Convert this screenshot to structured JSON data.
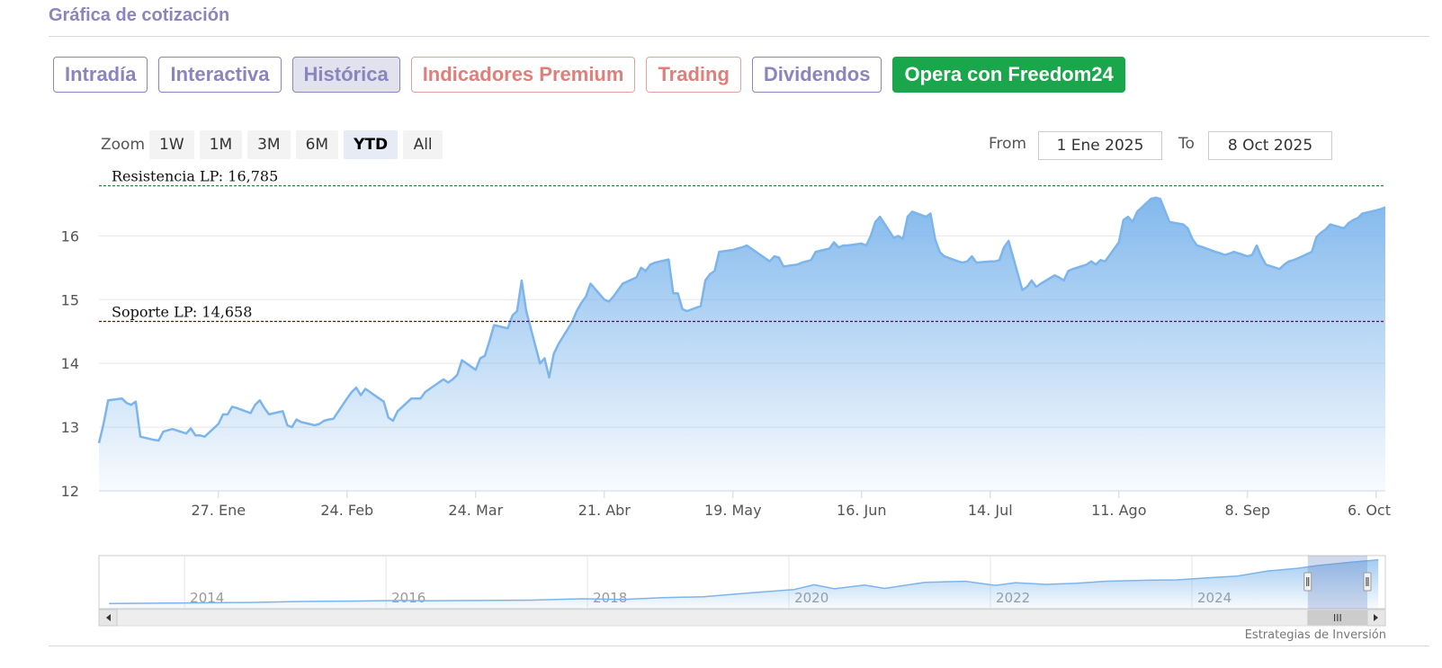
{
  "section_title": "Gráfica de cotización",
  "tabs": [
    {
      "label": "Intradía",
      "style": "normal"
    },
    {
      "label": "Interactiva",
      "style": "normal"
    },
    {
      "label": "Histórica",
      "style": "active"
    },
    {
      "label": "Indicadores Premium",
      "style": "premium"
    },
    {
      "label": "Trading",
      "style": "premium"
    },
    {
      "label": "Dividendos",
      "style": "normal"
    },
    {
      "label": "Opera con Freedom24",
      "style": "cta"
    }
  ],
  "zoom": {
    "label": "Zoom",
    "buttons": [
      "1W",
      "1M",
      "3M",
      "6M",
      "YTD",
      "All"
    ],
    "selected": "YTD"
  },
  "range": {
    "from_label": "From",
    "from_value": "1 Ene 2025",
    "to_label": "To",
    "to_value": "8 Oct 2025"
  },
  "credits": "Estrategias de Inversión",
  "colors": {
    "series_line": "#7cb5ec",
    "resistance_line": "#1a7a1a",
    "support_line": "#8b0000",
    "accent_green": "#1aa64a",
    "tab_purple": "#8a85bd",
    "tab_premium": "#e07f7a"
  },
  "chart_data": {
    "type": "area",
    "title": "",
    "xlabel": "",
    "ylabel": "",
    "ylim": [
      12,
      16.95
    ],
    "xlim": [
      "2025-01-01",
      "2025-10-08"
    ],
    "y_ticks": [
      "12",
      "13",
      "14",
      "15",
      "16"
    ],
    "x_ticks": [
      {
        "date": "2025-01-27",
        "label": "27. Ene"
      },
      {
        "date": "2025-02-24",
        "label": "24. Feb"
      },
      {
        "date": "2025-03-24",
        "label": "24. Mar"
      },
      {
        "date": "2025-04-21",
        "label": "21. Abr"
      },
      {
        "date": "2025-05-19",
        "label": "19. May"
      },
      {
        "date": "2025-06-16",
        "label": "16. Jun"
      },
      {
        "date": "2025-07-14",
        "label": "14. Jul"
      },
      {
        "date": "2025-08-11",
        "label": "11. Ago"
      },
      {
        "date": "2025-09-08",
        "label": "8. Sep"
      },
      {
        "date": "2025-10-06",
        "label": "6. Oct"
      }
    ],
    "grid": true,
    "series": [
      {
        "values": [
          [
            "2025-01-01",
            12.75
          ],
          [
            "2025-01-02",
            13.05
          ],
          [
            "2025-01-03",
            13.42
          ],
          [
            "2025-01-06",
            13.45
          ],
          [
            "2025-01-07",
            13.38
          ],
          [
            "2025-01-08",
            13.35
          ],
          [
            "2025-01-09",
            13.4
          ],
          [
            "2025-01-10",
            12.85
          ],
          [
            "2025-01-13",
            12.8
          ],
          [
            "2025-01-14",
            12.79
          ],
          [
            "2025-01-15",
            12.93
          ],
          [
            "2025-01-16",
            12.95
          ],
          [
            "2025-01-17",
            12.97
          ],
          [
            "2025-01-20",
            12.9
          ],
          [
            "2025-01-21",
            12.98
          ],
          [
            "2025-01-22",
            12.87
          ],
          [
            "2025-01-23",
            12.87
          ],
          [
            "2025-01-24",
            12.85
          ],
          [
            "2025-01-27",
            13.05
          ],
          [
            "2025-01-28",
            13.2
          ],
          [
            "2025-01-29",
            13.2
          ],
          [
            "2025-01-30",
            13.32
          ],
          [
            "2025-01-31",
            13.3
          ],
          [
            "2025-02-03",
            13.22
          ],
          [
            "2025-02-04",
            13.35
          ],
          [
            "2025-02-05",
            13.42
          ],
          [
            "2025-02-06",
            13.3
          ],
          [
            "2025-02-07",
            13.2
          ],
          [
            "2025-02-10",
            13.25
          ],
          [
            "2025-02-11",
            13.03
          ],
          [
            "2025-02-12",
            13.0
          ],
          [
            "2025-02-13",
            13.12
          ],
          [
            "2025-02-14",
            13.08
          ],
          [
            "2025-02-17",
            13.03
          ],
          [
            "2025-02-18",
            13.05
          ],
          [
            "2025-02-19",
            13.1
          ],
          [
            "2025-02-20",
            13.12
          ],
          [
            "2025-02-21",
            13.13
          ],
          [
            "2025-02-24",
            13.45
          ],
          [
            "2025-02-25",
            13.55
          ],
          [
            "2025-02-26",
            13.62
          ],
          [
            "2025-02-27",
            13.5
          ],
          [
            "2025-02-28",
            13.6
          ],
          [
            "2025-03-03",
            13.45
          ],
          [
            "2025-03-04",
            13.4
          ],
          [
            "2025-03-05",
            13.15
          ],
          [
            "2025-03-06",
            13.1
          ],
          [
            "2025-03-07",
            13.25
          ],
          [
            "2025-03-10",
            13.45
          ],
          [
            "2025-03-11",
            13.45
          ],
          [
            "2025-03-12",
            13.45
          ],
          [
            "2025-03-13",
            13.55
          ],
          [
            "2025-03-14",
            13.6
          ],
          [
            "2025-03-17",
            13.75
          ],
          [
            "2025-03-18",
            13.7
          ],
          [
            "2025-03-19",
            13.75
          ],
          [
            "2025-03-20",
            13.82
          ],
          [
            "2025-03-21",
            14.05
          ],
          [
            "2025-03-24",
            13.9
          ],
          [
            "2025-03-25",
            14.08
          ],
          [
            "2025-03-26",
            14.12
          ],
          [
            "2025-03-27",
            14.35
          ],
          [
            "2025-03-28",
            14.6
          ],
          [
            "2025-03-31",
            14.55
          ],
          [
            "2025-04-01",
            14.75
          ],
          [
            "2025-04-02",
            14.82
          ],
          [
            "2025-04-03",
            15.3
          ],
          [
            "2025-04-04",
            14.82
          ],
          [
            "2025-04-07",
            14.0
          ],
          [
            "2025-04-08",
            14.08
          ],
          [
            "2025-04-09",
            13.78
          ],
          [
            "2025-04-10",
            14.15
          ],
          [
            "2025-04-11",
            14.3
          ],
          [
            "2025-04-14",
            14.65
          ],
          [
            "2025-04-15",
            14.82
          ],
          [
            "2025-04-16",
            14.95
          ],
          [
            "2025-04-17",
            15.05
          ],
          [
            "2025-04-18",
            15.25
          ],
          [
            "2025-04-21",
            15.0
          ],
          [
            "2025-04-22",
            14.97
          ],
          [
            "2025-04-23",
            15.05
          ],
          [
            "2025-04-24",
            15.15
          ],
          [
            "2025-04-25",
            15.25
          ],
          [
            "2025-04-28",
            15.35
          ],
          [
            "2025-04-29",
            15.5
          ],
          [
            "2025-04-30",
            15.45
          ],
          [
            "2025-05-01",
            15.55
          ],
          [
            "2025-05-02",
            15.58
          ],
          [
            "2025-05-05",
            15.63
          ],
          [
            "2025-05-06",
            15.1
          ],
          [
            "2025-05-07",
            15.1
          ],
          [
            "2025-05-08",
            14.85
          ],
          [
            "2025-05-09",
            14.82
          ],
          [
            "2025-05-12",
            14.9
          ],
          [
            "2025-05-13",
            15.3
          ],
          [
            "2025-05-14",
            15.4
          ],
          [
            "2025-05-15",
            15.45
          ],
          [
            "2025-05-16",
            15.75
          ],
          [
            "2025-05-19",
            15.78
          ],
          [
            "2025-05-20",
            15.8
          ],
          [
            "2025-05-21",
            15.82
          ],
          [
            "2025-05-22",
            15.85
          ],
          [
            "2025-05-23",
            15.8
          ],
          [
            "2025-05-26",
            15.65
          ],
          [
            "2025-05-27",
            15.6
          ],
          [
            "2025-05-28",
            15.68
          ],
          [
            "2025-05-29",
            15.66
          ],
          [
            "2025-05-30",
            15.52
          ],
          [
            "2025-06-02",
            15.55
          ],
          [
            "2025-06-03",
            15.58
          ],
          [
            "2025-06-04",
            15.6
          ],
          [
            "2025-06-05",
            15.62
          ],
          [
            "2025-06-06",
            15.75
          ],
          [
            "2025-06-09",
            15.8
          ],
          [
            "2025-06-10",
            15.9
          ],
          [
            "2025-06-11",
            15.82
          ],
          [
            "2025-06-12",
            15.85
          ],
          [
            "2025-06-13",
            15.85
          ],
          [
            "2025-06-16",
            15.88
          ],
          [
            "2025-06-17",
            15.85
          ],
          [
            "2025-06-18",
            16.0
          ],
          [
            "2025-06-19",
            16.22
          ],
          [
            "2025-06-20",
            16.3
          ],
          [
            "2025-06-23",
            15.97
          ],
          [
            "2025-06-24",
            16.0
          ],
          [
            "2025-06-25",
            15.95
          ],
          [
            "2025-06-26",
            16.3
          ],
          [
            "2025-06-27",
            16.38
          ],
          [
            "2025-06-30",
            16.3
          ],
          [
            "2025-07-01",
            16.35
          ],
          [
            "2025-07-02",
            15.95
          ],
          [
            "2025-07-03",
            15.75
          ],
          [
            "2025-07-04",
            15.68
          ],
          [
            "2025-07-07",
            15.6
          ],
          [
            "2025-07-08",
            15.58
          ],
          [
            "2025-07-09",
            15.6
          ],
          [
            "2025-07-10",
            15.68
          ],
          [
            "2025-07-11",
            15.58
          ],
          [
            "2025-07-14",
            15.6
          ],
          [
            "2025-07-15",
            15.6
          ],
          [
            "2025-07-16",
            15.62
          ],
          [
            "2025-07-17",
            15.82
          ],
          [
            "2025-07-18",
            15.92
          ],
          [
            "2025-07-21",
            15.15
          ],
          [
            "2025-07-22",
            15.2
          ],
          [
            "2025-07-23",
            15.3
          ],
          [
            "2025-07-24",
            15.2
          ],
          [
            "2025-07-25",
            15.25
          ],
          [
            "2025-07-28",
            15.38
          ],
          [
            "2025-07-29",
            15.35
          ],
          [
            "2025-07-30",
            15.3
          ],
          [
            "2025-07-31",
            15.45
          ],
          [
            "2025-08-01",
            15.48
          ],
          [
            "2025-08-04",
            15.55
          ],
          [
            "2025-08-05",
            15.6
          ],
          [
            "2025-08-06",
            15.55
          ],
          [
            "2025-08-07",
            15.62
          ],
          [
            "2025-08-08",
            15.6
          ],
          [
            "2025-08-11",
            15.9
          ],
          [
            "2025-08-12",
            16.25
          ],
          [
            "2025-08-13",
            16.3
          ],
          [
            "2025-08-14",
            16.22
          ],
          [
            "2025-08-15",
            16.38
          ],
          [
            "2025-08-18",
            16.58
          ],
          [
            "2025-08-19",
            16.6
          ],
          [
            "2025-08-20",
            16.58
          ],
          [
            "2025-08-21",
            16.4
          ],
          [
            "2025-08-22",
            16.22
          ],
          [
            "2025-08-25",
            16.18
          ],
          [
            "2025-08-26",
            16.12
          ],
          [
            "2025-08-27",
            15.95
          ],
          [
            "2025-08-28",
            15.85
          ],
          [
            "2025-08-29",
            15.83
          ],
          [
            "2025-09-01",
            15.75
          ],
          [
            "2025-09-02",
            15.73
          ],
          [
            "2025-09-03",
            15.7
          ],
          [
            "2025-09-04",
            15.72
          ],
          [
            "2025-09-05",
            15.75
          ],
          [
            "2025-09-08",
            15.68
          ],
          [
            "2025-09-09",
            15.7
          ],
          [
            "2025-09-10",
            15.85
          ],
          [
            "2025-09-11",
            15.68
          ],
          [
            "2025-09-12",
            15.55
          ],
          [
            "2025-09-15",
            15.48
          ],
          [
            "2025-09-16",
            15.55
          ],
          [
            "2025-09-17",
            15.6
          ],
          [
            "2025-09-18",
            15.62
          ],
          [
            "2025-09-19",
            15.65
          ],
          [
            "2025-09-22",
            15.75
          ],
          [
            "2025-09-23",
            15.98
          ],
          [
            "2025-09-24",
            16.05
          ],
          [
            "2025-09-25",
            16.1
          ],
          [
            "2025-09-26",
            16.18
          ],
          [
            "2025-09-29",
            16.12
          ],
          [
            "2025-09-30",
            16.2
          ],
          [
            "2025-10-01",
            16.25
          ],
          [
            "2025-10-02",
            16.28
          ],
          [
            "2025-10-03",
            16.35
          ],
          [
            "2025-10-06",
            16.4
          ],
          [
            "2025-10-07",
            16.42
          ],
          [
            "2025-10-08",
            16.45
          ]
        ]
      }
    ],
    "annotations": [
      {
        "label": "Resistencia LP: 16,785",
        "y": 16.785,
        "color": "#1a7a1a"
      },
      {
        "label": "Soporte LP: 14,658",
        "y": 14.658,
        "color": "#8b0000"
      }
    ]
  },
  "navigator": {
    "year_labels": [
      "2014",
      "2016",
      "2018",
      "2020",
      "2022",
      "2024"
    ],
    "series": [
      [
        2013.1,
        12.0
      ],
      [
        2013.6,
        12.1
      ],
      [
        2014.0,
        12.2
      ],
      [
        2014.5,
        12.3
      ],
      [
        2015.0,
        12.6
      ],
      [
        2015.5,
        12.7
      ],
      [
        2016.0,
        12.9
      ],
      [
        2016.3,
        12.8
      ],
      [
        2016.8,
        12.9
      ],
      [
        2017.3,
        13.0
      ],
      [
        2017.8,
        13.4
      ],
      [
        2018.2,
        13.2
      ],
      [
        2018.6,
        13.7
      ],
      [
        2019.0,
        14.0
      ],
      [
        2019.5,
        15.2
      ],
      [
        2019.9,
        16.1
      ],
      [
        2020.1,
        17.5
      ],
      [
        2020.3,
        16.3
      ],
      [
        2020.6,
        17.4
      ],
      [
        2020.8,
        16.4
      ],
      [
        2021.2,
        18.2
      ],
      [
        2021.6,
        18.5
      ],
      [
        2021.9,
        17.3
      ],
      [
        2022.1,
        18.1
      ],
      [
        2022.4,
        17.6
      ],
      [
        2022.7,
        17.9
      ],
      [
        2023.0,
        18.5
      ],
      [
        2023.4,
        18.8
      ],
      [
        2023.7,
        18.9
      ],
      [
        2024.0,
        19.5
      ],
      [
        2024.3,
        20.0
      ],
      [
        2024.6,
        21.5
      ],
      [
        2024.9,
        22.3
      ],
      [
        2025.1,
        23.1
      ],
      [
        2025.4,
        24.0
      ],
      [
        2025.7,
        24.8
      ]
    ],
    "ylim": [
      10.5,
      26
    ],
    "xlim": [
      2013.0,
      2025.77
    ],
    "window_start": 2025.0,
    "scroll_thumb": "III"
  }
}
